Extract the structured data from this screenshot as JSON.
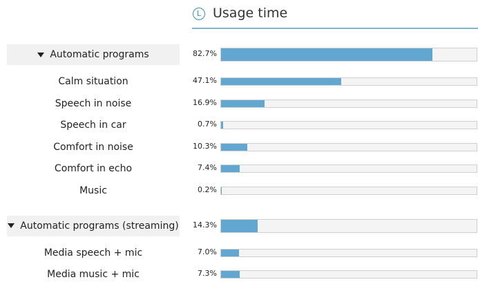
{
  "header": {
    "icon": "L",
    "title": "Usage time"
  },
  "xlim": [
    0,
    100
  ],
  "groups": [
    {
      "name": "Automatic programs",
      "value": 82.7,
      "value_label": "82.7%",
      "items": [
        {
          "name": "Calm situation",
          "value": 47.1,
          "value_label": "47.1%"
        },
        {
          "name": "Speech in noise",
          "value": 16.9,
          "value_label": "16.9%"
        },
        {
          "name": "Speech in car",
          "value": 0.7,
          "value_label": "0.7%"
        },
        {
          "name": "Comfort in noise",
          "value": 10.3,
          "value_label": "10.3%"
        },
        {
          "name": "Comfort in echo",
          "value": 7.4,
          "value_label": "7.4%"
        },
        {
          "name": "Music",
          "value": 0.2,
          "value_label": "0.2%"
        }
      ]
    },
    {
      "name": "Automatic programs (streaming)",
      "value": 14.3,
      "value_label": "14.3%",
      "items": [
        {
          "name": "Media speech + mic",
          "value": 7.0,
          "value_label": "7.0%"
        },
        {
          "name": "Media music + mic",
          "value": 7.3,
          "value_label": "7.3%"
        }
      ]
    }
  ]
}
